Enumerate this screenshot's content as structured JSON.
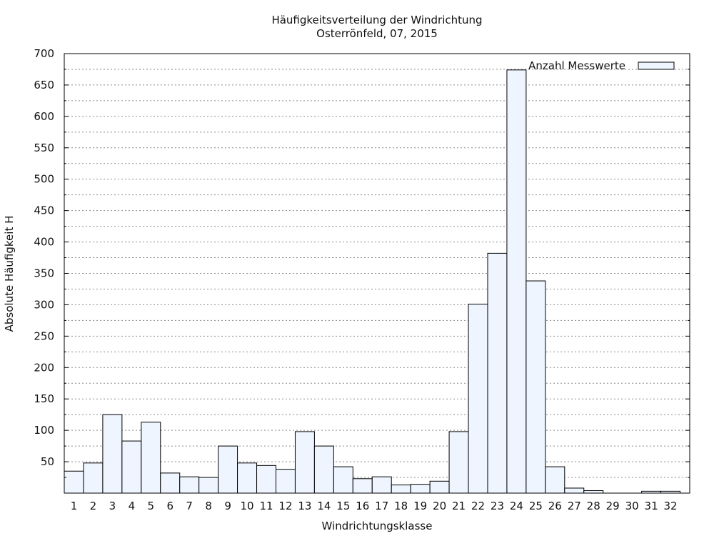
{
  "chart_data": {
    "type": "bar",
    "title": "Häufigkeitsverteilung der Windrichtung",
    "subtitle": "Osterrönfeld, 07, 2015",
    "xlabel": "Windrichtungsklasse",
    "ylabel": "Absolute Häufigkeit H",
    "ylim": [
      0,
      700
    ],
    "y_ticks": [
      50,
      100,
      150,
      200,
      250,
      300,
      350,
      400,
      450,
      500,
      550,
      600,
      650,
      700
    ],
    "y_minor_step": 25,
    "grid": true,
    "legend_position": "top-right",
    "bar_color": "#eef5ff",
    "categories": [
      "1",
      "2",
      "3",
      "4",
      "5",
      "6",
      "7",
      "8",
      "9",
      "10",
      "11",
      "12",
      "13",
      "14",
      "15",
      "16",
      "17",
      "18",
      "19",
      "20",
      "21",
      "22",
      "23",
      "24",
      "25",
      "26",
      "27",
      "28",
      "29",
      "30",
      "31",
      "32"
    ],
    "series": [
      {
        "name": "Anzahl Messwerte",
        "values": [
          35,
          48,
          125,
          83,
          113,
          32,
          26,
          25,
          75,
          48,
          44,
          38,
          98,
          75,
          42,
          23,
          26,
          13,
          14,
          19,
          98,
          301,
          382,
          674,
          338,
          42,
          8,
          4,
          0,
          0,
          3,
          3
        ]
      }
    ]
  }
}
